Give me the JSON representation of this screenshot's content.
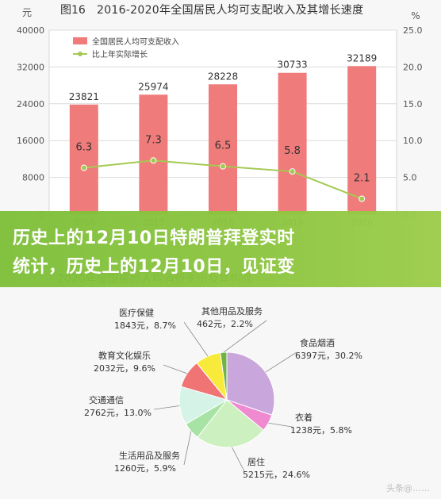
{
  "banner": {
    "line1": "历史上的12月10日特朗普拜登实时",
    "line2": "统计，历史上的12月10日，见证变"
  },
  "watermark": "头条@……",
  "chart_data": [
    {
      "type": "bar",
      "title_num": "图16",
      "title": "2016-2020年全国居民人均可支配收入及其增长速度",
      "categories": [
        "2016",
        "2017",
        "2018",
        "2019",
        "2020"
      ],
      "series": [
        {
          "name": "全国居民人均可支配收入",
          "type": "bar",
          "axis": "left",
          "values": [
            23821,
            25974,
            28228,
            30733,
            32189
          ],
          "color": "#f07b7b"
        },
        {
          "name": "比上年实际增长",
          "type": "line",
          "axis": "right",
          "values": [
            6.3,
            7.3,
            6.5,
            5.8,
            2.1
          ],
          "color": "#a4c952"
        }
      ],
      "left_axis": {
        "unit": "元",
        "ticks": [
          "0",
          "8000",
          "16000",
          "24000",
          "32000",
          "40000"
        ],
        "ylim": [
          0,
          40000
        ]
      },
      "right_axis": {
        "unit": "%",
        "ticks": [
          "0.0",
          "5.0",
          "10.0",
          "15.0",
          "20.0",
          "25.0"
        ],
        "ylim": [
          0,
          25
        ]
      },
      "grid": true,
      "legend_position": "top-left"
    },
    {
      "type": "pie",
      "title_fragment": "2020年全国居民人均消费支出及其构成",
      "slices": [
        {
          "label": "食品烟酒",
          "amount": "6397元",
          "value": 30.2,
          "pct": "30.2%",
          "color": "#c9a7dc"
        },
        {
          "label": "衣着",
          "amount": "1238元",
          "value": 5.8,
          "pct": "5.8%",
          "color": "#ef8ad0"
        },
        {
          "label": "居住",
          "amount": "5215元",
          "value": 24.6,
          "pct": "24.6%",
          "color": "#cdf0c0"
        },
        {
          "label": "生活用品及服务",
          "amount": "1260元",
          "value": 5.9,
          "pct": "5.9%",
          "color": "#a6e3a4"
        },
        {
          "label": "交通通信",
          "amount": "2762元",
          "value": 13.0,
          "pct": "13.0%",
          "color": "#d5f3e6"
        },
        {
          "label": "教育文化娱乐",
          "amount": "2032元",
          "value": 9.6,
          "pct": "9.6%",
          "color": "#f07474"
        },
        {
          "label": "医疗保健",
          "amount": "1843元",
          "value": 8.7,
          "pct": "8.7%",
          "color": "#f8ea3a"
        },
        {
          "label": "其他用品及服务",
          "amount": "462元",
          "value": 2.2,
          "pct": "2.2%",
          "color": "#6fb34a"
        }
      ]
    }
  ]
}
